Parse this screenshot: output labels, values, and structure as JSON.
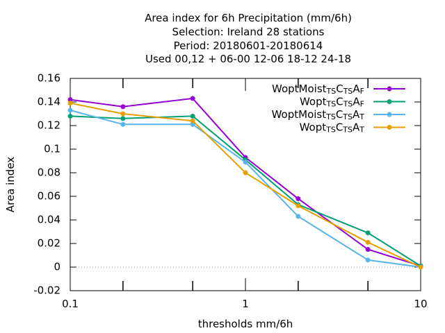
{
  "chart_data": {
    "type": "line",
    "title_lines": [
      "Area index  for 6h Precipitation (mm/6h)",
      "Selection: Ireland      28 stations",
      "Period: 20180601-20180614",
      "Used  00,12  + 06-00 12-06 18-12 24-18"
    ],
    "xlabel": "thresholds mm/6h",
    "ylabel": "Area index",
    "x_scale": "log",
    "xlim": [
      0.1,
      10
    ],
    "ylim": [
      -0.02,
      0.16
    ],
    "x_ticks": [
      {
        "value": 0.1,
        "label": "0.1"
      },
      {
        "value": 1,
        "label": "1"
      },
      {
        "value": 10,
        "label": "10"
      }
    ],
    "x_minor_ticks": [
      0.2,
      0.5,
      2,
      5
    ],
    "y_ticks": [
      {
        "value": -0.02,
        "label": "-0.02"
      },
      {
        "value": 0,
        "label": "0"
      },
      {
        "value": 0.02,
        "label": "0.02"
      },
      {
        "value": 0.04,
        "label": "0.04"
      },
      {
        "value": 0.06,
        "label": "0.06"
      },
      {
        "value": 0.08,
        "label": "0.08"
      },
      {
        "value": 0.1,
        "label": "0.1"
      },
      {
        "value": 0.12,
        "label": "0.12"
      },
      {
        "value": 0.14,
        "label": "0.14"
      },
      {
        "value": 0.16,
        "label": "0.16"
      }
    ],
    "zero_line": true,
    "legend_position": "top-right",
    "x": [
      0.1,
      0.2,
      0.5,
      1,
      2,
      5,
      10
    ],
    "series": [
      {
        "name": "WoptMoist_{TS}C_{TS}A_{F}",
        "legend": {
          "main": "WoptMoist",
          "parts": [
            [
              "TS",
              "sub"
            ],
            [
              "C",
              ""
            ],
            [
              "TS",
              "sub"
            ],
            [
              "A",
              ""
            ],
            [
              "F",
              "sub"
            ]
          ]
        },
        "color": "#9400d3",
        "values": [
          0.142,
          0.136,
          0.143,
          0.093,
          0.058,
          0.015,
          0.001
        ]
      },
      {
        "name": "Wopt_{TS}C_{TS}A_{F}",
        "legend": {
          "main": "Wopt",
          "parts": [
            [
              "TS",
              "sub"
            ],
            [
              "C",
              ""
            ],
            [
              "TS",
              "sub"
            ],
            [
              "A",
              ""
            ],
            [
              "F",
              "sub"
            ]
          ]
        },
        "color": "#009e73",
        "values": [
          0.128,
          0.126,
          0.128,
          0.091,
          0.053,
          0.029,
          0.001
        ]
      },
      {
        "name": "WoptMoist_{TS}C_{TS}A_{T}",
        "legend": {
          "main": "WoptMoist",
          "parts": [
            [
              "TS",
              "sub"
            ],
            [
              "C",
              ""
            ],
            [
              "TS",
              "sub"
            ],
            [
              "A",
              ""
            ],
            [
              "T",
              "sub"
            ]
          ]
        },
        "color": "#56b4e9",
        "values": [
          0.133,
          0.121,
          0.121,
          0.089,
          0.043,
          0.006,
          0.0
        ]
      },
      {
        "name": "Wopt_{TS}C_{TS}A_{T}",
        "legend": {
          "main": "Wopt",
          "parts": [
            [
              "TS",
              "sub"
            ],
            [
              "C",
              ""
            ],
            [
              "TS",
              "sub"
            ],
            [
              "A",
              ""
            ],
            [
              "T",
              "sub"
            ]
          ]
        },
        "color": "#e69f00",
        "values": [
          0.139,
          0.13,
          0.124,
          0.08,
          0.052,
          0.021,
          0.0
        ]
      }
    ]
  }
}
